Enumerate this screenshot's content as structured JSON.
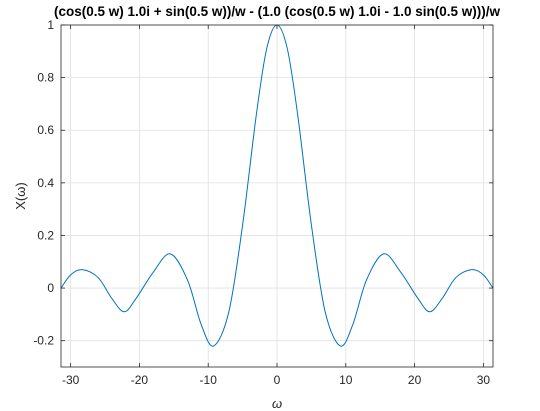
{
  "chart_data": {
    "type": "line",
    "title": "(cos(0.5 w) 1.0i + sin(0.5 w))/w - (1.0 (cos(0.5 w) 1.0i - 1.0 sin(0.5 w)))/w",
    "xlabel": "ω",
    "ylabel": "X(ω)",
    "xlim": [
      -31.4,
      31.4
    ],
    "ylim": [
      -0.3,
      1.0
    ],
    "xticks": [
      -30,
      -20,
      -10,
      0,
      10,
      20,
      30
    ],
    "yticks": [
      -0.2,
      0,
      0.2,
      0.4,
      0.6,
      0.8,
      1
    ],
    "xtick_labels": [
      "-30",
      "-20",
      "-10",
      "0",
      "10",
      "20",
      "30"
    ],
    "ytick_labels": [
      "-0.2",
      "0",
      "0.2",
      "0.4",
      "0.6",
      "0.8",
      "1"
    ],
    "grid": true,
    "series": [
      {
        "color": "#0072bd",
        "x": [
          -31.4,
          -30,
          -28.3,
          -26,
          -24,
          -22.2,
          -20.5,
          -18,
          -15.5,
          -13,
          -11,
          -9.2,
          -7,
          -5,
          -3,
          -1.5,
          0,
          1.5,
          3,
          5,
          7,
          9.2,
          11,
          13,
          15.5,
          18,
          20.5,
          22.2,
          24,
          26,
          28.3,
          30,
          31.4
        ],
        "values": [
          0.0,
          0.05,
          0.07,
          0.04,
          -0.04,
          -0.09,
          -0.04,
          0.06,
          0.13,
          0.03,
          -0.14,
          -0.22,
          -0.09,
          0.24,
          0.66,
          0.91,
          1.0,
          0.91,
          0.66,
          0.24,
          -0.09,
          -0.22,
          -0.14,
          0.03,
          0.13,
          0.06,
          -0.04,
          -0.09,
          -0.04,
          0.04,
          0.07,
          0.05,
          0.0
        ]
      }
    ]
  }
}
